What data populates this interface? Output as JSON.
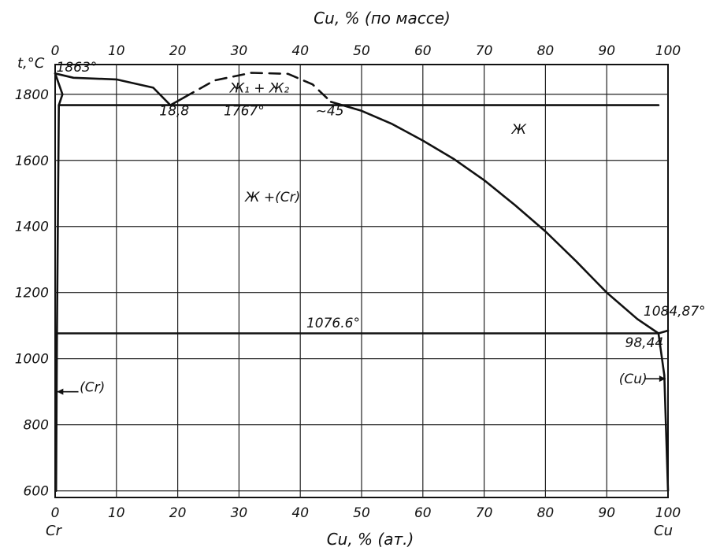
{
  "chart_data": {
    "type": "line",
    "title": "",
    "top_axis": {
      "label": "Cu, %  (по массе)",
      "ticks": [
        "0",
        "10",
        "20",
        "30",
        "40",
        "50",
        "60",
        "70",
        "80",
        "90",
        "100"
      ]
    },
    "bottom_axis": {
      "label": "Cu, %  (ат.)",
      "ticks": [
        "0",
        "10",
        "20",
        "30",
        "40",
        "50",
        "60",
        "70",
        "80",
        "90",
        "100"
      ]
    },
    "y_axis": {
      "label": "t,°C",
      "ticks": [
        "600",
        "800",
        "1000",
        "1200",
        "1400",
        "1600",
        "1800"
      ]
    },
    "xlim": [
      0,
      100
    ],
    "ylim": [
      580,
      1890
    ],
    "end_labels": {
      "left": "Cr",
      "right": "Cu"
    },
    "grid": true,
    "series": [
      {
        "style": "solid",
        "x": [
          0,
          3,
          10,
          16,
          18.8
        ],
        "y": [
          1863,
          1850,
          1845,
          1820,
          1767
        ]
      },
      {
        "style": "solid",
        "x": [
          18.8,
          21
        ],
        "y": [
          1767,
          1790
        ]
      },
      {
        "style": "dashed",
        "x": [
          21,
          26,
          32,
          38,
          42,
          45
        ],
        "y": [
          1790,
          1842,
          1865,
          1862,
          1830,
          1777
        ]
      },
      {
        "style": "solid",
        "x": [
          45,
          50,
          55,
          60,
          65,
          70,
          75,
          80,
          85,
          90,
          95,
          98.44
        ],
        "y": [
          1777,
          1750,
          1710,
          1660,
          1605,
          1540,
          1465,
          1385,
          1295,
          1200,
          1120,
          1076.6
        ]
      },
      {
        "style": "solid",
        "x": [
          98.44,
          100
        ],
        "y": [
          1076.6,
          1084.87
        ]
      },
      {
        "style": "solid",
        "x": [
          0.6,
          98.44
        ],
        "y": [
          1767,
          1767
        ]
      },
      {
        "style": "solid",
        "x": [
          0.3,
          98.44
        ],
        "y": [
          1076.6,
          1076.6
        ]
      },
      {
        "style": "solid",
        "x": [
          0,
          1.2,
          0.6,
          0.3,
          0.15
        ],
        "y": [
          1863,
          1800,
          1767,
          1076.6,
          600
        ]
      },
      {
        "style": "solid",
        "x": [
          98.44,
          99.4,
          100
        ],
        "y": [
          1076.6,
          950,
          600
        ]
      }
    ],
    "annotations": [
      {
        "text": "1863°",
        "x": 0.2,
        "y": 1868
      },
      {
        "text": "Ж₁ + Ж₂",
        "x": 28.5,
        "y": 1805
      },
      {
        "text": "18,8",
        "x": 17,
        "y": 1736
      },
      {
        "text": "1767°",
        "x": 27.5,
        "y": 1736
      },
      {
        "text": "~45",
        "x": 42.5,
        "y": 1736
      },
      {
        "text": "Ж",
        "x": 74.5,
        "y": 1680
      },
      {
        "text": "Ж +(Cr)",
        "x": 31,
        "y": 1475
      },
      {
        "text": "1076.6°",
        "x": 41,
        "y": 1095
      },
      {
        "text": "1084,87°",
        "x": 96,
        "y": 1130
      },
      {
        "text": "98,44",
        "x": 93,
        "y": 1035
      },
      {
        "text": "(Cr)",
        "x": 4,
        "y": 900
      },
      {
        "text": "(Cu)",
        "x": 92,
        "y": 925
      }
    ]
  }
}
